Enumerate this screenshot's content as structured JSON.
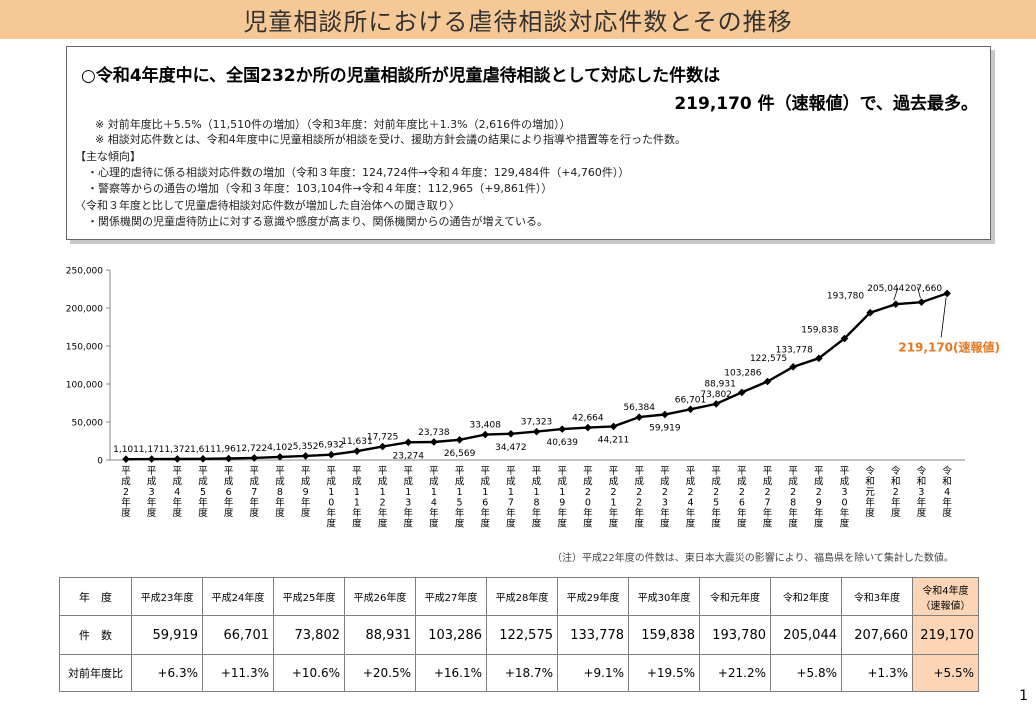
{
  "title": "児童相談所における虐待相談対応件数とその推移",
  "summary": {
    "headline": "○令和4年度中に、全国232か所の児童相談所が児童虐待相談として対応した件数は",
    "headline2": "219,170 件（速報値）で、過去最多。",
    "note1": "※ 対前年度比＋5.5%（11,510件の増加）（令和3年度：対前年度比＋1.3%（2,616件の増加））",
    "note2": "※ 相談対応件数とは、令和4年度中に児童相談所が相談を受け、援助方針会議の結果により指導や措置等を行った件数。",
    "trend_heading": "【主な傾向】",
    "trend1": "・心理的虐待に係る相談対応件数の増加（令和３年度：124,724件→令和４年度：129,484件（+4,760件））",
    "trend2": "・警察等からの通告の増加（令和３年度：103,104件→令和４年度：112,965（+9,861件））",
    "trend_heading2": "〈令和３年度と比して児童虐待相談対応件数が増加した自治体への聞き取り〉",
    "trend3": "・関係機関の児童虐待防止に対する意識や感度が高まり、関係機関からの通告が増えている。"
  },
  "chart_data": {
    "type": "line",
    "categories": [
      "平成2年度",
      "平成3年度",
      "平成4年度",
      "平成5年度",
      "平成6年度",
      "平成7年度",
      "平成8年度",
      "平成9年度",
      "平成10年度",
      "平成11年度",
      "平成12年度",
      "平成13年度",
      "平成14年度",
      "平成15年度",
      "平成16年度",
      "平成17年度",
      "平成18年度",
      "平成19年度",
      "平成20年度",
      "平成21年度",
      "平成22年度",
      "平成23年度",
      "平成24年度",
      "平成25年度",
      "平成26年度",
      "平成27年度",
      "平成28年度",
      "平成29年度",
      "平成30年度",
      "令和元年度",
      "令和2年度",
      "令和3年度",
      "令和4年度"
    ],
    "values": [
      1101,
      1171,
      1372,
      1611,
      1961,
      2722,
      4102,
      5352,
      6932,
      11631,
      17725,
      23274,
      23738,
      26569,
      33408,
      34472,
      37323,
      40639,
      42664,
      44211,
      56384,
      59919,
      66701,
      73802,
      88931,
      103286,
      122575,
      133778,
      159838,
      193780,
      205044,
      207660,
      219170
    ],
    "data_labels": [
      "1,101",
      "1,171",
      "1,372",
      "1,611",
      "1,961",
      "2,722",
      "4,102",
      "5,352",
      "6,932",
      "11,631",
      "17,725",
      "23,274",
      "23,738",
      "26,569",
      "33,408",
      "34,472",
      "37,323",
      "40,639",
      "42,664",
      "44,211",
      "56,384",
      "59,919",
      "66,701",
      "73,802",
      "88,931",
      "103,286",
      "122,575",
      "133,778",
      "159,838",
      "193,780",
      "205,044",
      "207,660",
      ""
    ],
    "final_label": "219,170(速報値)",
    "ylim": [
      0,
      250000
    ],
    "yticks": [
      "0",
      "50,000",
      "100,000",
      "150,000",
      "200,000",
      "250,000"
    ],
    "grid": false,
    "line_color": "#000000",
    "highlight_color": "#e87722"
  },
  "footnote": "（注）平成22年度の件数は、東日本大震災の影響により、福島県を除いて集計した数値。",
  "table": {
    "year_header": "年　度",
    "count_header": "件　数",
    "rate_header": "対前年度比",
    "years": [
      "平成23年度",
      "平成24年度",
      "平成25年度",
      "平成26年度",
      "平成27年度",
      "平成28年度",
      "平成29年度",
      "平成30年度",
      "令和元年度",
      "令和2年度",
      "令和3年度",
      "令和4年度\n（速報値）"
    ],
    "counts": [
      "59,919",
      "66,701",
      "73,802",
      "88,931",
      "103,286",
      "122,575",
      "133,778",
      "159,838",
      "193,780",
      "205,044",
      "207,660",
      "219,170"
    ],
    "rates": [
      "+6.3%",
      "+11.3%",
      "+10.6%",
      "+20.5%",
      "+16.1%",
      "+18.7%",
      "+9.1%",
      "+19.5%",
      "+21.2%",
      "+5.8%",
      "+1.3%",
      "+5.5%"
    ],
    "highlight_color": "#fbd5b5"
  },
  "page_number": "1"
}
